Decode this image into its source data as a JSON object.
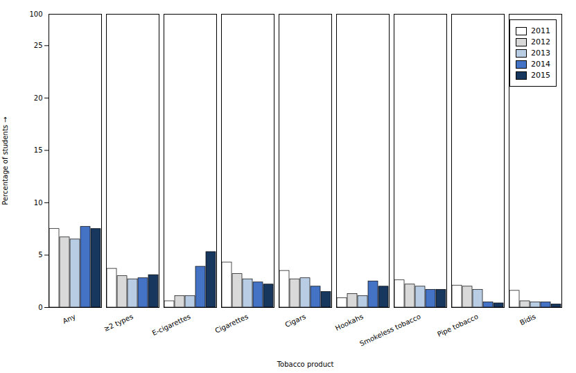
{
  "chart_data": {
    "type": "bar",
    "categories": [
      "Any",
      "≥2 types",
      "E-cigarettes",
      "Cigarettes",
      "Cigars",
      "Hookahs",
      "Smokeless tobacco",
      "Pipe tobacco",
      "Bidis"
    ],
    "series": [
      {
        "name": "2011",
        "color": "#ffffff",
        "values": [
          7.5,
          3.7,
          0.6,
          4.3,
          3.5,
          0.9,
          2.6,
          2.1,
          1.6
        ]
      },
      {
        "name": "2012",
        "color": "#d9d9d9",
        "values": [
          6.7,
          3.0,
          1.1,
          3.2,
          2.7,
          1.3,
          2.2,
          2.0,
          0.6
        ]
      },
      {
        "name": "2013",
        "color": "#b8cce4",
        "values": [
          6.5,
          2.7,
          1.1,
          2.7,
          2.8,
          1.1,
          2.0,
          1.7,
          0.5
        ]
      },
      {
        "name": "2014",
        "color": "#4472c4",
        "values": [
          7.7,
          2.8,
          3.9,
          2.4,
          2.0,
          2.5,
          1.7,
          0.5,
          0.5
        ]
      },
      {
        "name": "2015",
        "color": "#17375e",
        "values": [
          7.5,
          3.1,
          5.3,
          2.2,
          1.5,
          2.0,
          1.7,
          0.4,
          0.3
        ]
      }
    ],
    "xlabel": "Tobacco product",
    "ylabel": "Percentage of students",
    "ylim": [
      0,
      28
    ],
    "yticks": [
      0,
      5,
      10,
      15,
      20,
      25
    ],
    "annotations": [
      {
        "text": "100"
      }
    ],
    "legend": "upper right",
    "grid": false
  }
}
